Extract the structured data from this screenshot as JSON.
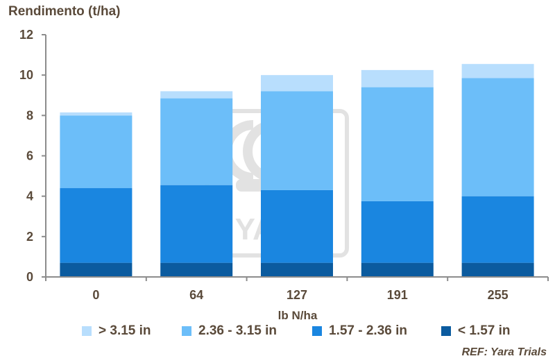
{
  "chart_data": {
    "type": "bar",
    "stacked": true,
    "title": "",
    "ylabel": "Rendimento (t/ha)",
    "xlabel": "lb N/ha",
    "categories": [
      "0",
      "64",
      "127",
      "191",
      "255"
    ],
    "ylim": [
      0,
      12
    ],
    "yticks": [
      0,
      2,
      4,
      6,
      8,
      10,
      12
    ],
    "grid": false,
    "legend_position": "bottom",
    "series": [
      {
        "name": "< 1.57 in",
        "color": "#0b5b9f",
        "values": [
          0.7,
          0.7,
          0.7,
          0.7,
          0.7
        ]
      },
      {
        "name": "1.57 - 2.36 in",
        "color": "#1a86e0",
        "values": [
          3.7,
          3.85,
          3.6,
          3.05,
          3.3
        ]
      },
      {
        "name": "2.36 - 3.15 in",
        "color": "#6cbef9",
        "values": [
          3.6,
          4.3,
          4.9,
          5.65,
          5.85
        ]
      },
      {
        "name": "> 3.15 in",
        "color": "#b8defd",
        "values": [
          0.15,
          0.35,
          0.8,
          0.85,
          0.7
        ]
      }
    ],
    "legend_order": [
      3,
      2,
      1,
      0
    ],
    "reference": "REF: Yara Trials"
  },
  "watermark": {
    "text": "YARA"
  },
  "colors": {
    "axis": "#8c8c8c",
    "text": "#5a4a3a"
  }
}
